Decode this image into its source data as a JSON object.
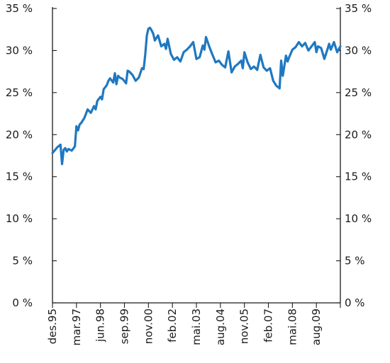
{
  "chart_data": {
    "type": "line",
    "title": "",
    "xlabel": "",
    "ylabel": "",
    "ylim": [
      0,
      35
    ],
    "y_ticks": [
      0,
      5,
      10,
      15,
      20,
      25,
      30,
      35
    ],
    "y_tick_labels": [
      "0 %",
      "5 %",
      "10 %",
      "15 %",
      "20 %",
      "25 %",
      "30 %",
      "35 %"
    ],
    "x_tick_labels": [
      "des.95",
      "mar.97",
      "jun.98",
      "sep.99",
      "nov.00",
      "feb.02",
      "mai.03",
      "aug.04",
      "nov.05",
      "feb.07",
      "mai.08",
      "aug.09"
    ],
    "grid": false,
    "legend": "none",
    "colors": {
      "series": "#1f78c1",
      "axis": "#1a1a1a"
    },
    "series": [
      {
        "x": [
          0,
          3,
          5,
          6,
          7,
          8,
          9,
          10,
          12,
          14,
          15,
          16,
          17,
          18,
          20,
          22,
          24,
          26,
          27,
          28,
          30,
          31,
          32,
          34,
          35,
          36,
          38,
          39,
          40,
          41,
          42,
          44,
          46,
          47,
          48,
          50,
          52,
          54,
          56,
          57,
          58,
          59,
          60,
          61,
          62,
          63,
          64,
          66,
          68,
          70,
          71,
          72,
          74,
          76,
          78,
          80,
          82,
          84,
          86,
          88,
          90,
          92,
          94,
          95,
          96,
          98,
          100,
          102,
          104,
          106,
          108,
          110,
          112,
          114,
          116,
          118,
          119,
          120,
          122,
          124,
          126,
          128,
          130,
          132,
          134,
          136,
          138,
          140,
          142,
          143,
          144,
          146,
          147,
          148,
          150,
          152,
          154,
          156,
          158,
          160,
          162,
          164,
          165,
          166,
          168,
          170,
          172,
          173,
          174,
          176,
          178,
          180
        ],
        "y": [
          17.8,
          18.5,
          18.8,
          16.5,
          18.2,
          18.4,
          18.0,
          18.3,
          18.1,
          18.6,
          21.0,
          20.5,
          21.2,
          21.4,
          22.0,
          23.0,
          22.6,
          23.4,
          23.0,
          24.0,
          24.5,
          24.2,
          25.4,
          25.9,
          26.4,
          26.7,
          26.2,
          27.3,
          26.0,
          27.0,
          26.8,
          26.6,
          26.1,
          27.6,
          27.5,
          27.1,
          26.4,
          26.8,
          27.9,
          27.8,
          29.5,
          31.8,
          32.6,
          32.7,
          32.4,
          32.0,
          31.2,
          31.8,
          30.5,
          30.8,
          30.2,
          31.4,
          29.6,
          28.9,
          29.2,
          28.7,
          29.8,
          30.1,
          30.5,
          31.0,
          29.0,
          29.2,
          30.6,
          30.1,
          31.6,
          30.5,
          29.5,
          28.6,
          28.8,
          28.3,
          28.0,
          29.9,
          27.4,
          28.1,
          28.4,
          28.8,
          27.9,
          29.8,
          28.6,
          27.8,
          28.1,
          27.7,
          29.5,
          28.0,
          27.6,
          27.9,
          26.4,
          25.8,
          25.5,
          28.8,
          27.0,
          29.4,
          28.7,
          29.2,
          30.1,
          30.4,
          31.0,
          30.5,
          30.9,
          30.0,
          30.5,
          31.0,
          29.8,
          30.5,
          30.3,
          29.0,
          30.2,
          30.8,
          30.1,
          31.0,
          29.8,
          30.5
        ]
      }
    ]
  }
}
